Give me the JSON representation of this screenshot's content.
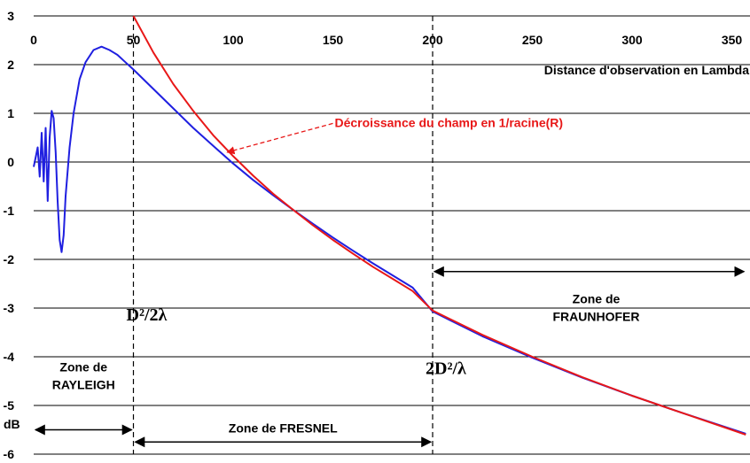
{
  "chart_data": {
    "type": "line",
    "xlabel": "Distance d'observation en Lambda",
    "ylabel": "dB",
    "xlim": [
      0,
      360
    ],
    "ylim": [
      -6,
      3
    ],
    "x_ticks": [
      0,
      50,
      100,
      150,
      200,
      250,
      300,
      350
    ],
    "y_ticks": [
      3,
      2,
      1,
      0,
      -1,
      -2,
      -3,
      -4,
      -5,
      -6
    ],
    "grid": "horizontal",
    "series": [
      {
        "name": "",
        "color": "#1f1fe0",
        "points": [
          [
            0,
            -0.1
          ],
          [
            1,
            0.1
          ],
          [
            2,
            0.3
          ],
          [
            3,
            -0.3
          ],
          [
            4,
            0.6
          ],
          [
            5,
            -0.4
          ],
          [
            6,
            0.7
          ],
          [
            7,
            -0.8
          ],
          [
            8,
            0.5
          ],
          [
            9,
            1.05
          ],
          [
            10,
            0.9
          ],
          [
            11,
            0.2
          ],
          [
            12,
            -0.8
          ],
          [
            13,
            -1.6
          ],
          [
            14,
            -1.85
          ],
          [
            15,
            -1.5
          ],
          [
            16,
            -0.7
          ],
          [
            18,
            0.3
          ],
          [
            20,
            1.0
          ],
          [
            23,
            1.7
          ],
          [
            26,
            2.05
          ],
          [
            30,
            2.3
          ],
          [
            34,
            2.37
          ],
          [
            38,
            2.3
          ],
          [
            42,
            2.2
          ],
          [
            46,
            2.05
          ],
          [
            50,
            1.9
          ],
          [
            60,
            1.5
          ],
          [
            70,
            1.1
          ],
          [
            80,
            0.7
          ],
          [
            90,
            0.33
          ],
          [
            100,
            -0.03
          ],
          [
            110,
            -0.37
          ],
          [
            120,
            -0.68
          ],
          [
            130,
            -0.98
          ],
          [
            140,
            -1.27
          ],
          [
            150,
            -1.55
          ],
          [
            160,
            -1.82
          ],
          [
            170,
            -2.08
          ],
          [
            180,
            -2.33
          ],
          [
            190,
            -2.58
          ],
          [
            200,
            -3.07
          ],
          [
            225,
            -3.58
          ],
          [
            250,
            -4.02
          ],
          [
            275,
            -4.43
          ],
          [
            300,
            -4.8
          ],
          [
            325,
            -5.15
          ],
          [
            357,
            -5.58
          ]
        ]
      },
      {
        "name": "Décroissance du champ en 1/racine(R)",
        "color": "#e81818",
        "points": [
          [
            50,
            3.0
          ],
          [
            60,
            2.25
          ],
          [
            70,
            1.6
          ],
          [
            80,
            1.05
          ],
          [
            90,
            0.55
          ],
          [
            100,
            0.12
          ],
          [
            110,
            -0.28
          ],
          [
            120,
            -0.65
          ],
          [
            130,
            -0.98
          ],
          [
            140,
            -1.3
          ],
          [
            150,
            -1.6
          ],
          [
            160,
            -1.88
          ],
          [
            170,
            -2.15
          ],
          [
            180,
            -2.4
          ],
          [
            190,
            -2.65
          ],
          [
            200,
            -3.05
          ],
          [
            225,
            -3.55
          ],
          [
            250,
            -4.0
          ],
          [
            275,
            -4.42
          ],
          [
            300,
            -4.8
          ],
          [
            325,
            -5.15
          ],
          [
            357,
            -5.6
          ]
        ]
      }
    ],
    "vertical_lines": [
      {
        "x": 50,
        "label": "D²/2λ",
        "label_y": -3.25
      },
      {
        "x": 200,
        "label": "2D²/λ",
        "label_y": -4.35
      }
    ],
    "zones": [
      {
        "label_lines": [
          "Zone de",
          "RAYLEIGH"
        ],
        "x_from": 0,
        "x_to": 50,
        "arrow_y": -5.5,
        "text_x": 25,
        "text_y": -4.3
      },
      {
        "label_lines": [
          "Zone de FRESNEL"
        ],
        "x_from": 50,
        "x_to": 200,
        "arrow_y": -5.75,
        "text_x": 125,
        "text_y": -5.55
      },
      {
        "label_lines": [
          "Zone de",
          "FRAUNHOFER"
        ],
        "x_from": 200,
        "x_to": 357,
        "arrow_y": -2.25,
        "text_x": 282,
        "text_y": -2.9
      }
    ],
    "annotation": {
      "text": "Décroissance du champ en 1/racine(R)",
      "text_at": [
        150,
        0.72
      ],
      "arrow_to": [
        97,
        0.2
      ]
    }
  }
}
